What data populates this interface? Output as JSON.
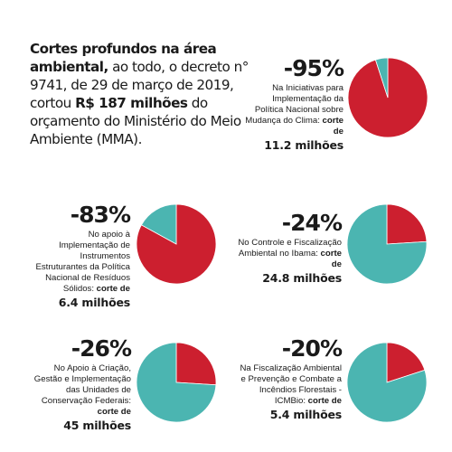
{
  "intro": {
    "bold1": "Cortes profundos na área ambiental,",
    "text1": " ao todo, o decreto n° 9741, de 29 de março de 2019, cortou ",
    "bold2": "R$ 187 milhões",
    "text2": " do orçamento do Ministério do Meio Ambiente (MMA)."
  },
  "colors": {
    "cut": "#cc1f2f",
    "remaining": "#4bb5b1"
  },
  "cut_label": "corte de",
  "chart_data": [
    {
      "type": "pie",
      "title": "-95%",
      "label": "Na Iniciativas para Implementação da Política Nacional sobre Mudança do Clima:",
      "amount": "11.2 milhões",
      "slices": [
        {
          "name": "corte",
          "value": 95,
          "color": "#cc1f2f"
        },
        {
          "name": "restante",
          "value": 5,
          "color": "#4bb5b1"
        }
      ]
    },
    {
      "type": "pie",
      "title": "-83%",
      "label": "No apoio à Implementação de Instrumentos Estruturantes da Política Nacional de Resíduos Sólidos:",
      "amount": "6.4 milhões",
      "slices": [
        {
          "name": "corte",
          "value": 83,
          "color": "#cc1f2f"
        },
        {
          "name": "restante",
          "value": 17,
          "color": "#4bb5b1"
        }
      ]
    },
    {
      "type": "pie",
      "title": "-24%",
      "label": "No Controle e Fiscalização Ambiental no Ibama:",
      "amount": "24.8 milhões",
      "slices": [
        {
          "name": "corte",
          "value": 24,
          "color": "#cc1f2f"
        },
        {
          "name": "restante",
          "value": 76,
          "color": "#4bb5b1"
        }
      ]
    },
    {
      "type": "pie",
      "title": "-26%",
      "label": "No Apoio à Criação, Gestão e Implementação das Unidades de Conservação Federais:",
      "amount": "45 milhões",
      "slices": [
        {
          "name": "corte",
          "value": 26,
          "color": "#cc1f2f"
        },
        {
          "name": "restante",
          "value": 74,
          "color": "#4bb5b1"
        }
      ]
    },
    {
      "type": "pie",
      "title": "-20%",
      "label": "Na Fiscalização Ambiental e Prevenção e Combate a Incêndios Florestais - ICMBio:",
      "amount": "5.4 milhões",
      "slices": [
        {
          "name": "corte",
          "value": 20,
          "color": "#cc1f2f"
        },
        {
          "name": "restante",
          "value": 80,
          "color": "#4bb5b1"
        }
      ]
    }
  ]
}
